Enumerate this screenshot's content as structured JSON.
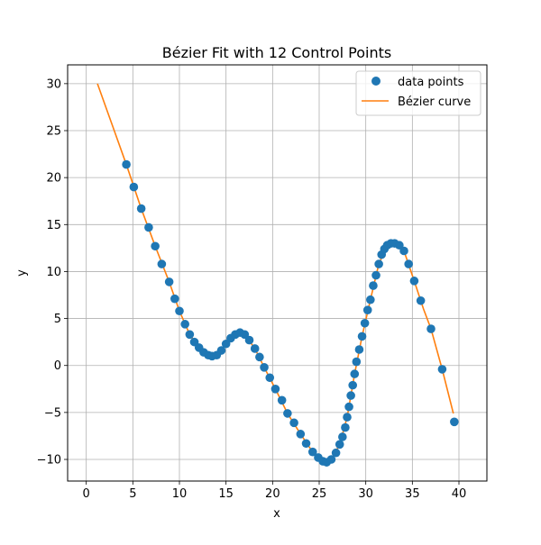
{
  "chart_data": {
    "type": "scatter",
    "title": "Bézier Fit with 12 Control Points",
    "xlabel": "x",
    "ylabel": "y",
    "xlim": [
      -2,
      43
    ],
    "ylim": [
      -12.3,
      32
    ],
    "xticks": [
      0,
      5,
      10,
      15,
      20,
      25,
      30,
      35,
      40
    ],
    "yticks": [
      -10,
      -5,
      0,
      5,
      10,
      15,
      20,
      25,
      30
    ],
    "grid": true,
    "legend_position": "top-right",
    "colors": {
      "points": "#1f77b4",
      "curve": "#ff7f0e",
      "grid": "#b0b0b0"
    },
    "series": [
      {
        "name": "data points",
        "kind": "scatter",
        "x": [
          4.3,
          5.1,
          5.9,
          6.7,
          7.4,
          8.1,
          8.9,
          9.5,
          10.0,
          10.6,
          11.1,
          11.6,
          12.1,
          12.6,
          13.1,
          13.5,
          14.0,
          14.5,
          15.0,
          15.5,
          16.0,
          16.5,
          17.0,
          17.5,
          18.1,
          18.6,
          19.1,
          19.7,
          20.3,
          21.0,
          21.6,
          22.3,
          23.0,
          23.6,
          24.3,
          24.9,
          25.4,
          25.8,
          26.3,
          26.8,
          27.2,
          27.5,
          27.8,
          28.0,
          28.2,
          28.4,
          28.6,
          28.8,
          29.0,
          29.3,
          29.6,
          29.9,
          30.2,
          30.5,
          30.8,
          31.1,
          31.4,
          31.7,
          32.0,
          32.3,
          32.7,
          33.1,
          33.6,
          34.1,
          34.6,
          35.2,
          35.9,
          37.0,
          38.2,
          39.5
        ],
        "y": [
          21.4,
          19.0,
          16.7,
          14.7,
          12.7,
          10.8,
          8.9,
          7.1,
          5.8,
          4.4,
          3.3,
          2.5,
          1.9,
          1.4,
          1.1,
          1.0,
          1.1,
          1.6,
          2.3,
          2.9,
          3.3,
          3.5,
          3.3,
          2.7,
          1.8,
          0.9,
          -0.2,
          -1.3,
          -2.5,
          -3.7,
          -5.1,
          -6.1,
          -7.3,
          -8.3,
          -9.2,
          -9.8,
          -10.2,
          -10.3,
          -10.0,
          -9.3,
          -8.4,
          -7.6,
          -6.6,
          -5.5,
          -4.4,
          -3.2,
          -2.1,
          -0.9,
          0.4,
          1.7,
          3.1,
          4.5,
          5.9,
          7.0,
          8.5,
          9.6,
          10.8,
          11.8,
          12.4,
          12.8,
          13.0,
          13.0,
          12.8,
          12.2,
          10.8,
          9.0,
          6.9,
          3.9,
          -0.4,
          -6.0
        ]
      },
      {
        "name": "Bézier curve",
        "kind": "line",
        "x": [
          1.2,
          4.3,
          5.9,
          7.4,
          8.9,
          10.0,
          11.1,
          12.1,
          13.1,
          14.0,
          15.0,
          16.0,
          16.5,
          17.0,
          18.1,
          19.1,
          20.3,
          21.6,
          23.0,
          24.3,
          25.4,
          26.3,
          27.2,
          28.0,
          28.8,
          29.6,
          30.5,
          31.4,
          32.3,
          33.1,
          34.1,
          35.2,
          36.2,
          37.0,
          38.2,
          39.4
        ],
        "y": [
          30.0,
          21.4,
          16.7,
          12.7,
          8.9,
          5.8,
          3.3,
          1.9,
          1.1,
          1.1,
          2.3,
          3.3,
          3.5,
          3.3,
          1.8,
          -0.2,
          -2.5,
          -5.1,
          -7.3,
          -9.2,
          -10.2,
          -10.0,
          -8.4,
          -5.5,
          -0.9,
          3.1,
          7.0,
          10.8,
          12.8,
          13.0,
          12.2,
          9.0,
          6.0,
          3.9,
          -0.4,
          -5.1
        ]
      }
    ]
  }
}
